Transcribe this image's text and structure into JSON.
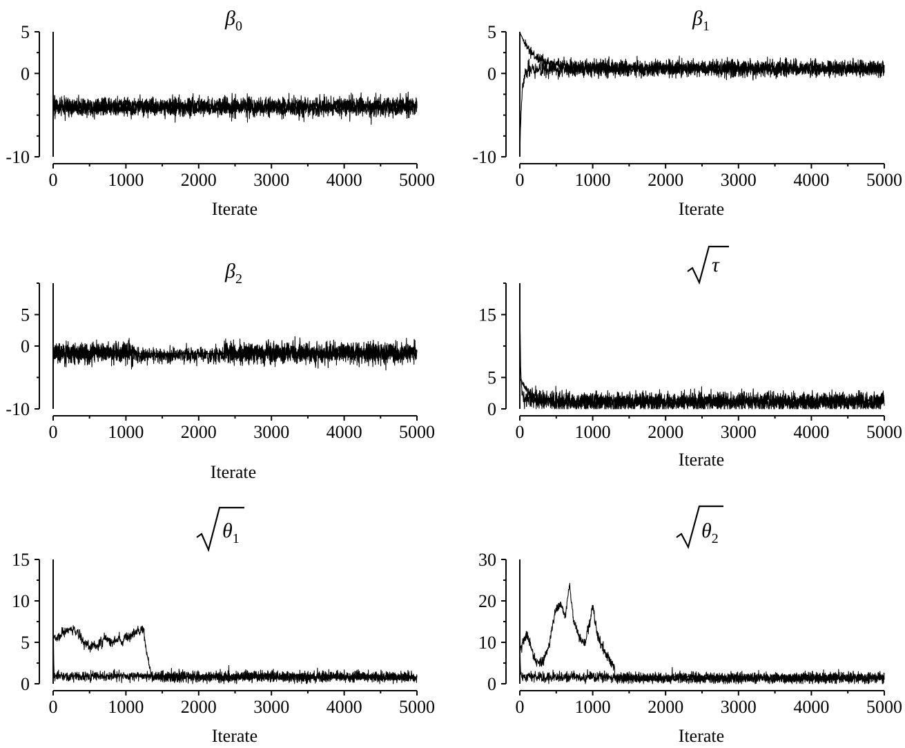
{
  "chart_data": [
    {
      "id": "beta0",
      "type": "line",
      "title": {
        "symbol": "β",
        "subscript": "0",
        "sqrt": false
      },
      "xlabel": "Iterate",
      "xlim": [
        0,
        5000
      ],
      "ylim": [
        -10,
        5
      ],
      "xticks": [
        0,
        1000,
        2000,
        3000,
        4000,
        5000
      ],
      "yticks": [
        -10,
        0,
        5
      ],
      "yminor": [
        -7.5,
        -5,
        -2.5,
        2.5
      ],
      "series": [
        {
          "segments": [
            {
              "start": 0,
              "end": 5000,
              "level": -4.2,
              "noise": 0.5,
              "walk": 0
            }
          ],
          "start_value": -3.5
        },
        {
          "segments": [
            {
              "start": 0,
              "end": 5000,
              "level": -3.8,
              "noise": 0.5,
              "walk": 0
            }
          ],
          "start_value": -4.5
        }
      ]
    },
    {
      "id": "beta1",
      "type": "line",
      "title": {
        "symbol": "β",
        "subscript": "1",
        "sqrt": false
      },
      "xlabel": "Iterate",
      "xlim": [
        0,
        5000
      ],
      "ylim": [
        -10,
        5
      ],
      "xticks": [
        0,
        1000,
        2000,
        3000,
        4000,
        5000
      ],
      "yticks": [
        -10,
        0,
        5
      ],
      "yminor": [
        -7.5,
        -5,
        -2.5,
        2.5
      ],
      "series": [
        {
          "segments": [
            {
              "start": 0,
              "end": 5000,
              "level": 0.7,
              "noise": 0.45,
              "walk": 0
            }
          ],
          "start_value": 5,
          "decay": 180
        },
        {
          "segments": [
            {
              "start": 0,
              "end": 5000,
              "level": 0.5,
              "noise": 0.45,
              "walk": 0
            }
          ],
          "start_value": -10,
          "decay": 25
        }
      ]
    },
    {
      "id": "beta2",
      "type": "line",
      "title": {
        "symbol": "β",
        "subscript": "2",
        "sqrt": false
      },
      "xlabel": "Iterate",
      "xlim": [
        0,
        5000
      ],
      "ylim": [
        -10,
        10
      ],
      "xticks": [
        0,
        1000,
        2000,
        3000,
        4000,
        5000
      ],
      "yticks": [
        -10,
        0,
        5
      ],
      "yminor": [
        -5,
        10
      ],
      "series": [
        {
          "segments": [
            {
              "start": 0,
              "end": 1100,
              "level": -1.2,
              "noise": 0.8,
              "walk": 0
            },
            {
              "start": 1100,
              "end": 2350,
              "level": -1.5,
              "noise": 0.7,
              "walk": 0
            },
            {
              "start": 2350,
              "end": 5000,
              "level": -1.2,
              "noise": 0.8,
              "walk": 0
            }
          ],
          "start_value": 2
        },
        {
          "segments": [
            {
              "start": 0,
              "end": 1100,
              "level": -1.0,
              "noise": 0.8,
              "walk": 0
            },
            {
              "start": 1100,
              "end": 2350,
              "level": -1.2,
              "noise": 0.05,
              "walk": 0
            },
            {
              "start": 2350,
              "end": 5000,
              "level": -1.0,
              "noise": 0.8,
              "walk": 0
            }
          ],
          "start_value": -2
        }
      ]
    },
    {
      "id": "sqrt-tau",
      "type": "line",
      "title": {
        "symbol": "τ",
        "subscript": "",
        "sqrt": true
      },
      "xlabel": "Iterate",
      "xlim": [
        0,
        5000
      ],
      "ylim": [
        0,
        20
      ],
      "xticks": [
        0,
        1000,
        2000,
        3000,
        4000,
        5000
      ],
      "yticks": [
        0,
        5,
        15
      ],
      "yminor": [
        10,
        20
      ],
      "series": [
        {
          "segments": [
            {
              "start": 0,
              "end": 5000,
              "level": 1.3,
              "noise": 0.7,
              "walk": 0
            }
          ],
          "start_value": 18,
          "decay": 12
        },
        {
          "segments": [
            {
              "start": 0,
              "end": 5000,
              "level": 1.0,
              "noise": 0.7,
              "walk": 0
            }
          ],
          "start_value": 5,
          "decay": 150
        }
      ]
    },
    {
      "id": "sqrt-theta1",
      "type": "line",
      "title": {
        "symbol": "θ",
        "subscript": "1",
        "sqrt": true
      },
      "xlabel": "Iterate",
      "xlim": [
        0,
        5000
      ],
      "ylim": [
        0,
        15
      ],
      "xticks": [
        0,
        1000,
        2000,
        3000,
        4000,
        5000
      ],
      "yticks": [
        0,
        5,
        10,
        15
      ],
      "yminor": [
        2.5,
        7.5,
        12.5
      ],
      "series": [
        {
          "segments": [
            {
              "start": 0,
              "end": 5000,
              "level": 0.9,
              "noise": 0.3,
              "walk": 0
            }
          ],
          "start_value": 15,
          "decay": 4
        },
        {
          "segments": [
            {
              "start": 0,
              "end": 1250,
              "level": 5.6,
              "noise": 0.25,
              "walk": 0.12
            },
            {
              "start": 1250,
              "end": 1350,
              "level": 1.0,
              "noise": 0.2,
              "walk": 0,
              "ramp_from": 5.5
            },
            {
              "start": 1350,
              "end": 5000,
              "level": 0.8,
              "noise": 0.3,
              "walk": 0
            }
          ],
          "start_value": 5
        }
      ]
    },
    {
      "id": "sqrt-theta2",
      "type": "line",
      "title": {
        "symbol": "θ",
        "subscript": "2",
        "sqrt": true
      },
      "xlabel": "Iterate",
      "xlim": [
        0,
        5000
      ],
      "ylim": [
        0,
        30
      ],
      "xticks": [
        0,
        1000,
        2000,
        3000,
        4000,
        5000
      ],
      "yticks": [
        0,
        10,
        20,
        30
      ],
      "yminor": [
        5,
        15,
        25
      ],
      "series": [
        {
          "segments": [
            {
              "start": 0,
              "end": 5000,
              "level": 1.6,
              "noise": 0.6,
              "walk": 0
            }
          ],
          "start_value": 15,
          "decay": 5
        },
        {
          "segments": [
            {
              "start": 0,
              "end": 1300,
              "level": 0,
              "noise": 0.6,
              "walk": 0,
              "path": [
                [
                  0,
                  8
                ],
                [
                  100,
                  12
                ],
                [
                  200,
                  6
                ],
                [
                  300,
                  5
                ],
                [
                  400,
                  9
                ],
                [
                  480,
                  17
                ],
                [
                  560,
                  19
                ],
                [
                  620,
                  16
                ],
                [
                  680,
                  24
                ],
                [
                  740,
                  15
                ],
                [
                  820,
                  11
                ],
                [
                  900,
                  10
                ],
                [
                  960,
                  15
                ],
                [
                  1000,
                  19
                ],
                [
                  1060,
                  12
                ],
                [
                  1160,
                  8
                ],
                [
                  1250,
                  5
                ],
                [
                  1300,
                  4
                ]
              ]
            },
            {
              "start": 1300,
              "end": 5000,
              "level": 1.2,
              "noise": 0.6,
              "walk": 0
            }
          ],
          "start_value": 8
        }
      ]
    }
  ]
}
